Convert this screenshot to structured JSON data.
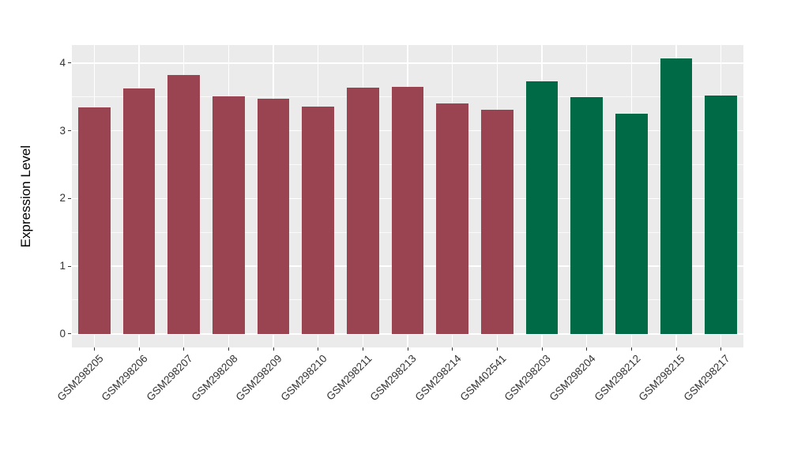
{
  "chart_data": {
    "type": "bar",
    "title": "",
    "xlabel": "",
    "ylabel": "Expression Level",
    "categories": [
      "GSM298205",
      "GSM298206",
      "GSM298207",
      "GSM298208",
      "GSM298209",
      "GSM298210",
      "GSM298211",
      "GSM298213",
      "GSM298214",
      "GSM402541",
      "GSM298203",
      "GSM298204",
      "GSM298212",
      "GSM298215",
      "GSM298217"
    ],
    "values": [
      3.35,
      3.63,
      3.83,
      3.51,
      3.47,
      3.36,
      3.64,
      3.65,
      3.41,
      3.31,
      3.73,
      3.5,
      3.25,
      4.07,
      3.52
    ],
    "bar_groups": [
      "maroon",
      "maroon",
      "maroon",
      "maroon",
      "maroon",
      "maroon",
      "maroon",
      "maroon",
      "maroon",
      "maroon",
      "green",
      "green",
      "green",
      "green",
      "green"
    ],
    "group_colors": {
      "maroon": "#9A4452",
      "green": "#006946"
    },
    "y_ticks": [
      0,
      1,
      2,
      3,
      4
    ],
    "ylim": [
      -0.2,
      4.268
    ],
    "grid": true,
    "legend": "none",
    "panel_background": "#EBEBEB",
    "gridline_color": "#FFFFFF"
  }
}
